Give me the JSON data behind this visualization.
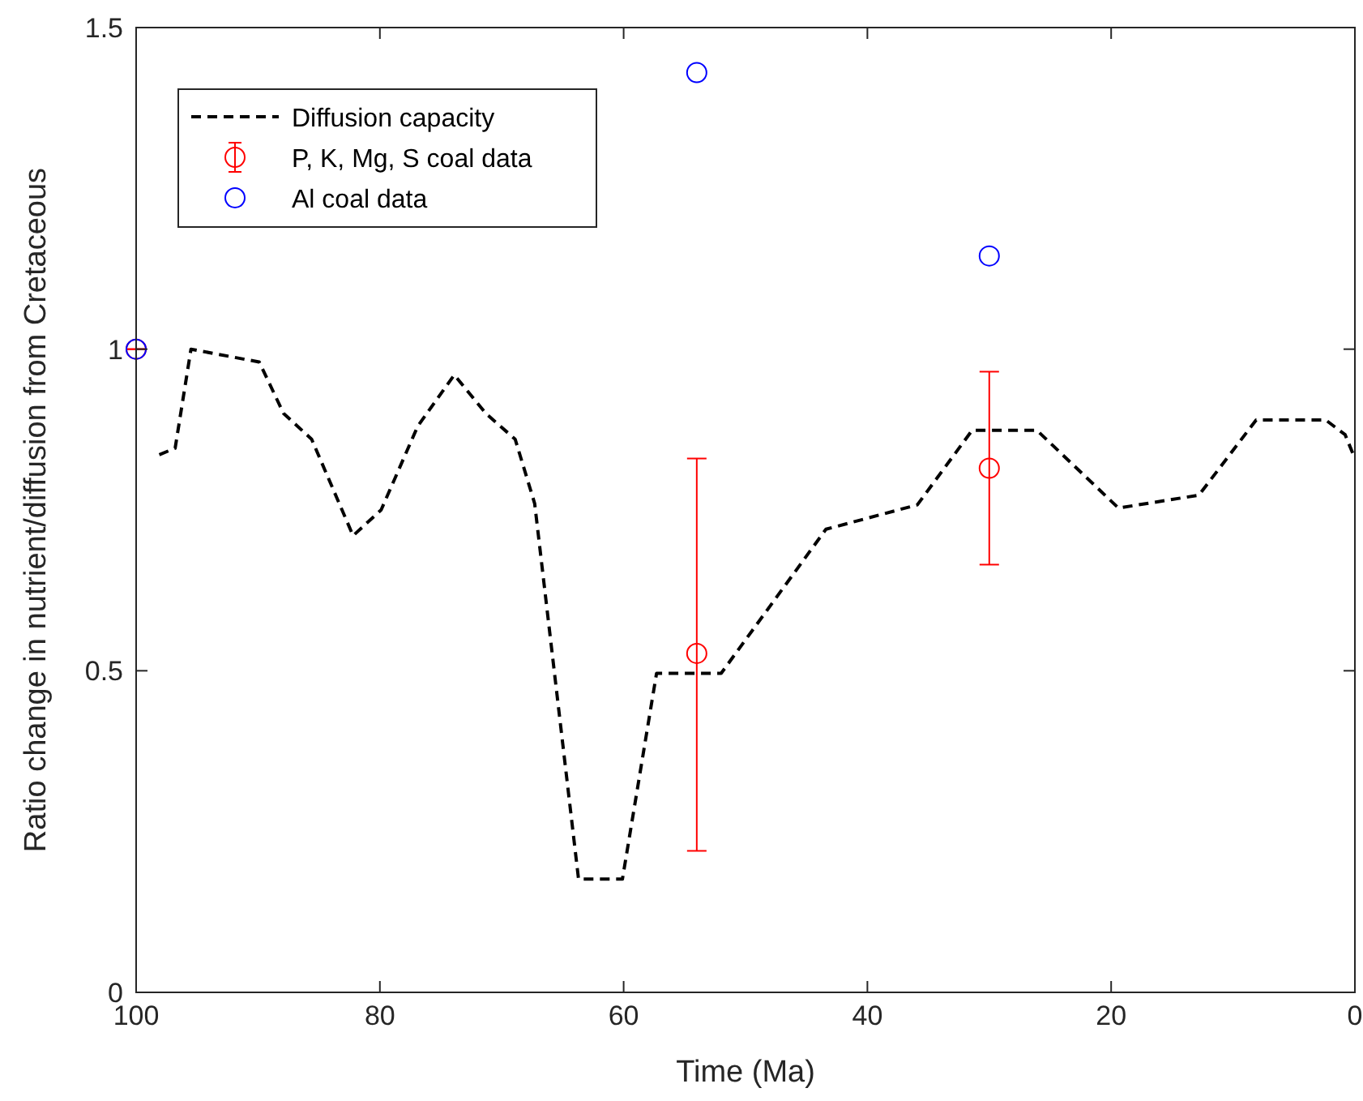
{
  "chart_data": {
    "type": "line",
    "xlabel": "Time (Ma)",
    "ylabel": "Ratio change in nutrient/diffusion from Cretaceous",
    "xlim": [
      100,
      0
    ],
    "xticks": [
      100,
      80,
      60,
      40,
      20,
      0
    ],
    "ylim": [
      0,
      1.5
    ],
    "yticks": [
      0,
      0.5,
      1,
      1.5
    ],
    "legend": "top left",
    "grid": false,
    "series": [
      {
        "name": "Diffusion capacity",
        "color": "#000000",
        "line_style": "dashed",
        "marker": "none",
        "x": [
          98.1,
          96.8,
          95.5,
          89.9,
          87.9,
          85.6,
          82.2,
          79.9,
          76.9,
          73.9,
          71.3,
          68.9,
          67.3,
          63.7,
          60.1,
          57.3,
          52.0,
          43.4,
          35.9,
          31.4,
          26.1,
          19.4,
          12.8,
          8.1,
          2.4,
          0.8,
          0
        ],
        "values": [
          0.836,
          0.846,
          1.0,
          0.98,
          0.9,
          0.86,
          0.71,
          0.75,
          0.88,
          0.96,
          0.9,
          0.86,
          0.76,
          0.176,
          0.176,
          0.496,
          0.496,
          0.72,
          0.758,
          0.874,
          0.874,
          0.753,
          0.773,
          0.89,
          0.89,
          0.867,
          0.83
        ]
      },
      {
        "name": "P, K, Mg, S  coal data",
        "type": "scatter",
        "color": "#ff0000",
        "marker": "circle",
        "x": [
          100,
          54,
          30
        ],
        "values": [
          1.0,
          0.527,
          0.815
        ],
        "errors": [
          0,
          [
            0.22,
            0.83
          ],
          [
            0.665,
            0.965
          ]
        ]
      },
      {
        "name": "Al coal data",
        "type": "scatter",
        "color": "#0000ff",
        "marker": "circle",
        "x": [
          100,
          54,
          30
        ],
        "values": [
          1.0,
          1.43,
          1.145
        ]
      }
    ]
  }
}
